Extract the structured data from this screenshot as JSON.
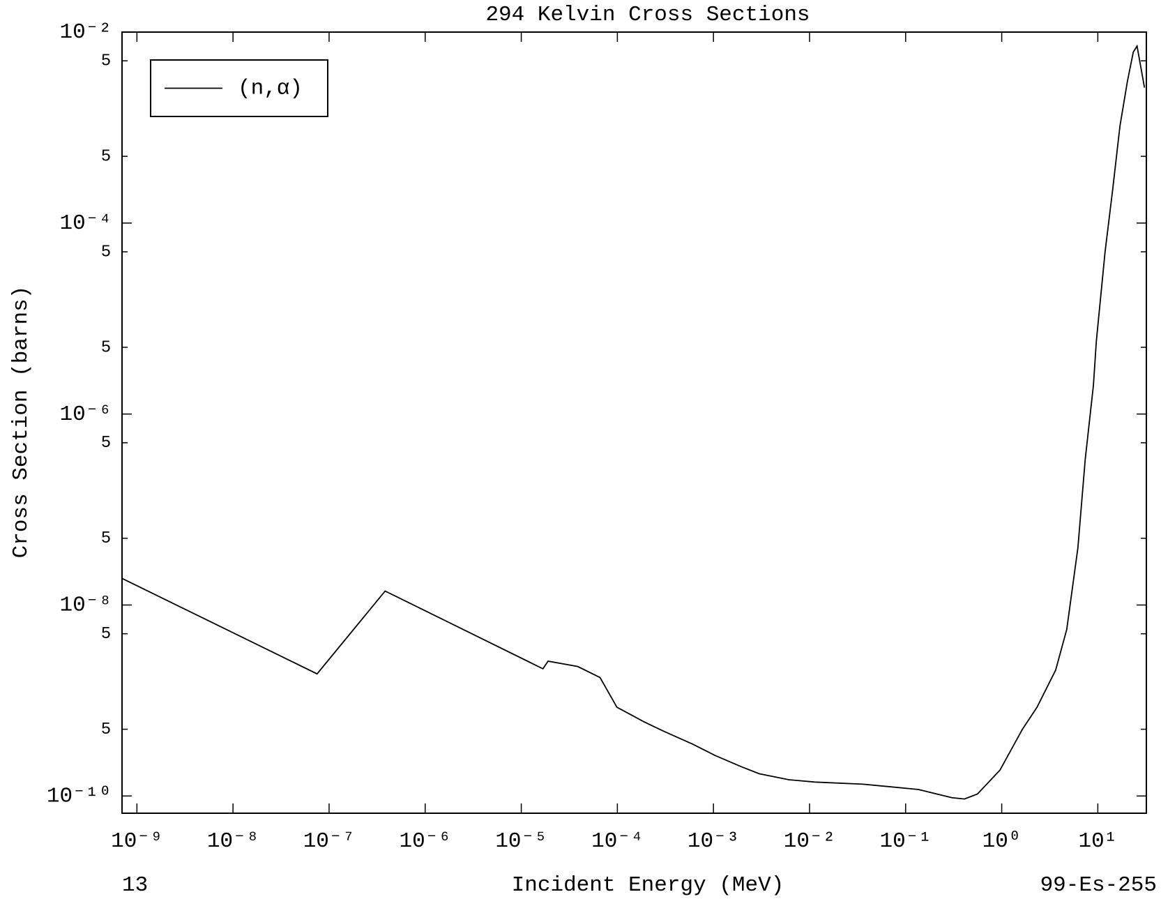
{
  "chart_data": {
    "type": "line",
    "title": "294 Kelvin Cross Sections",
    "xlabel": "Incident Energy (MeV)",
    "ylabel": "Cross Section (barns)",
    "footer_left": "13",
    "footer_right": "99-Es-255",
    "xscale": "log",
    "yscale": "log",
    "xlim": [
      7e-10,
      32
    ],
    "ylim": [
      6.6e-11,
      0.01
    ],
    "xticks": [
      {
        "value": 1e-09,
        "label": "10⁻⁹"
      },
      {
        "value": 1e-08,
        "label": "10⁻⁸"
      },
      {
        "value": 1e-07,
        "label": "10⁻⁷"
      },
      {
        "value": 1e-06,
        "label": "10⁻⁶"
      },
      {
        "value": 1e-05,
        "label": "10⁻⁵"
      },
      {
        "value": 0.0001,
        "label": "10⁻⁴"
      },
      {
        "value": 0.001,
        "label": "10⁻³"
      },
      {
        "value": 0.01,
        "label": "10⁻²"
      },
      {
        "value": 0.1,
        "label": "10⁻¹"
      },
      {
        "value": 1,
        "label": "10⁰"
      },
      {
        "value": 10,
        "label": "10¹"
      }
    ],
    "yticks": [
      {
        "value": 0.01,
        "label": "10⁻²"
      },
      {
        "value": 0.005,
        "label": "5"
      },
      {
        "value": 0.0005,
        "label": "5"
      },
      {
        "value": 0.0001,
        "label": "10⁻⁴"
      },
      {
        "value": 5e-05,
        "label": "5"
      },
      {
        "value": 5e-06,
        "label": "5"
      },
      {
        "value": 1e-06,
        "label": "10⁻⁶"
      },
      {
        "value": 5e-07,
        "label": "5"
      },
      {
        "value": 5e-08,
        "label": "5"
      },
      {
        "value": 1e-08,
        "label": "10⁻⁸"
      },
      {
        "value": 5e-09,
        "label": "5"
      },
      {
        "value": 5e-10,
        "label": "5"
      },
      {
        "value": 1e-10,
        "label": "10⁻¹⁰"
      }
    ],
    "legend": "upper left",
    "x": [
      7e-10,
      7.5e-08,
      3.83e-07,
      1.68e-05,
      1.9e-05,
      3.87e-05,
      6.6e-05,
      9.9e-05,
      0.000191,
      0.000298,
      0.000607,
      0.00103,
      0.00192,
      0.00299,
      0.0061,
      0.0113,
      0.036,
      0.136,
      0.303,
      0.41,
      0.56,
      0.96,
      1.64,
      2.33,
      3.64,
      4.75,
      6.2,
      7.4,
      9.0,
      9.66,
      11.9,
      14.3,
      17.0,
      20.3,
      23.4,
      25.6,
      30.6
    ],
    "series": [
      {
        "name": "(n,α)",
        "color": "#000000",
        "values": [
          1.9e-08,
          1.9e-09,
          1.4e-08,
          2.15e-09,
          2.58e-09,
          2.27e-09,
          1.74e-09,
          8.5e-10,
          5.96e-10,
          4.81e-10,
          3.49e-10,
          2.67e-10,
          2.04e-10,
          1.71e-10,
          1.48e-10,
          1.4e-10,
          1.33e-10,
          1.17e-10,
          9.6e-11,
          9.3e-11,
          1.05e-10,
          1.87e-10,
          4.99e-10,
          8.5e-10,
          2.08e-09,
          5.55e-09,
          3.95e-08,
          3.37e-07,
          2e-06,
          5.85e-06,
          4.99e-05,
          0.000227,
          0.00104,
          0.00303,
          0.00618,
          0.00713,
          0.00262
        ]
      }
    ]
  }
}
